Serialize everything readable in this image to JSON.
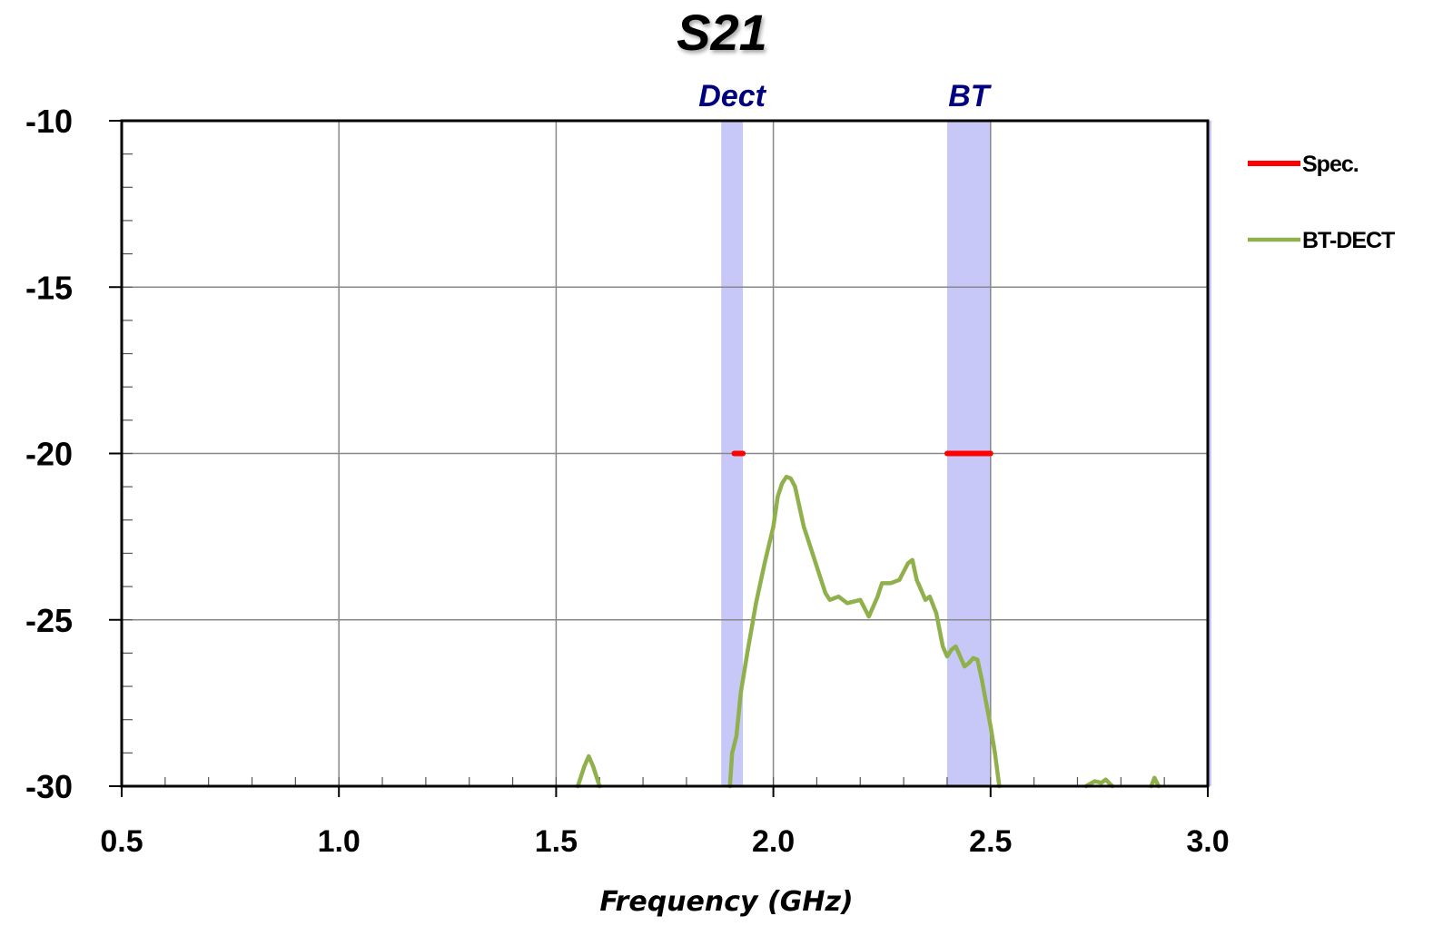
{
  "chart_data": {
    "type": "line",
    "title": "S21",
    "xlabel": "Frequency (GHz)",
    "ylabel": "",
    "xlim": [
      0.5,
      3.0
    ],
    "ylim": [
      -30,
      -10
    ],
    "x_ticks": [
      "0.5",
      "1.0",
      "1.5",
      "2.0",
      "2.5",
      "3.0"
    ],
    "y_ticks": [
      "-10",
      "-15",
      "-20",
      "-25",
      "-30"
    ],
    "grid": true,
    "legend_position": "right",
    "bands": [
      {
        "label": "Dect",
        "x_range": [
          1.88,
          1.93
        ],
        "color": "#c8c8f8"
      },
      {
        "label": "BT",
        "x_range": [
          2.4,
          2.5
        ],
        "color": "#c8c8f8"
      }
    ],
    "series": [
      {
        "name": "Spec.",
        "color": "#ff0000",
        "segments": [
          [
            [
              1.91,
              -20
            ],
            [
              1.93,
              -20
            ]
          ],
          [
            [
              2.4,
              -20
            ],
            [
              2.5,
              -20
            ]
          ]
        ]
      },
      {
        "name": "BT-DECT",
        "color": "#8fb04a",
        "segments": [
          [
            [
              1.55,
              -30
            ],
            [
              1.565,
              -29.4
            ],
            [
              1.575,
              -29.1
            ],
            [
              1.585,
              -29.4
            ],
            [
              1.6,
              -30
            ]
          ],
          [
            [
              1.9,
              -30
            ],
            [
              1.905,
              -29.0
            ],
            [
              1.915,
              -28.5
            ],
            [
              1.925,
              -27.2
            ],
            [
              1.94,
              -26.0
            ],
            [
              1.96,
              -24.5
            ],
            [
              1.98,
              -23.3
            ],
            [
              2.0,
              -22.2
            ],
            [
              2.01,
              -21.3
            ],
            [
              2.02,
              -20.9
            ],
            [
              2.03,
              -20.7
            ],
            [
              2.04,
              -20.75
            ],
            [
              2.05,
              -21.0
            ],
            [
              2.06,
              -21.6
            ],
            [
              2.07,
              -22.2
            ],
            [
              2.09,
              -23.0
            ],
            [
              2.11,
              -23.8
            ],
            [
              2.12,
              -24.2
            ],
            [
              2.13,
              -24.4
            ],
            [
              2.15,
              -24.3
            ],
            [
              2.17,
              -24.5
            ],
            [
              2.2,
              -24.4
            ],
            [
              2.22,
              -24.9
            ],
            [
              2.24,
              -24.3
            ],
            [
              2.25,
              -23.9
            ],
            [
              2.27,
              -23.9
            ],
            [
              2.29,
              -23.8
            ],
            [
              2.31,
              -23.3
            ],
            [
              2.32,
              -23.2
            ],
            [
              2.33,
              -23.8
            ],
            [
              2.34,
              -24.1
            ],
            [
              2.35,
              -24.4
            ],
            [
              2.36,
              -24.3
            ],
            [
              2.375,
              -24.8
            ],
            [
              2.39,
              -25.8
            ],
            [
              2.4,
              -26.1
            ],
            [
              2.41,
              -25.9
            ],
            [
              2.42,
              -25.8
            ],
            [
              2.43,
              -26.1
            ],
            [
              2.44,
              -26.4
            ],
            [
              2.45,
              -26.3
            ],
            [
              2.46,
              -26.15
            ],
            [
              2.47,
              -26.2
            ],
            [
              2.48,
              -26.8
            ],
            [
              2.49,
              -27.5
            ],
            [
              2.5,
              -28.2
            ],
            [
              2.51,
              -29.0
            ],
            [
              2.52,
              -30
            ]
          ],
          [
            [
              2.72,
              -30
            ],
            [
              2.74,
              -29.85
            ],
            [
              2.755,
              -29.9
            ],
            [
              2.765,
              -29.8
            ],
            [
              2.78,
              -30
            ]
          ],
          [
            [
              2.87,
              -30
            ],
            [
              2.877,
              -29.75
            ],
            [
              2.887,
              -30
            ]
          ]
        ]
      }
    ]
  }
}
